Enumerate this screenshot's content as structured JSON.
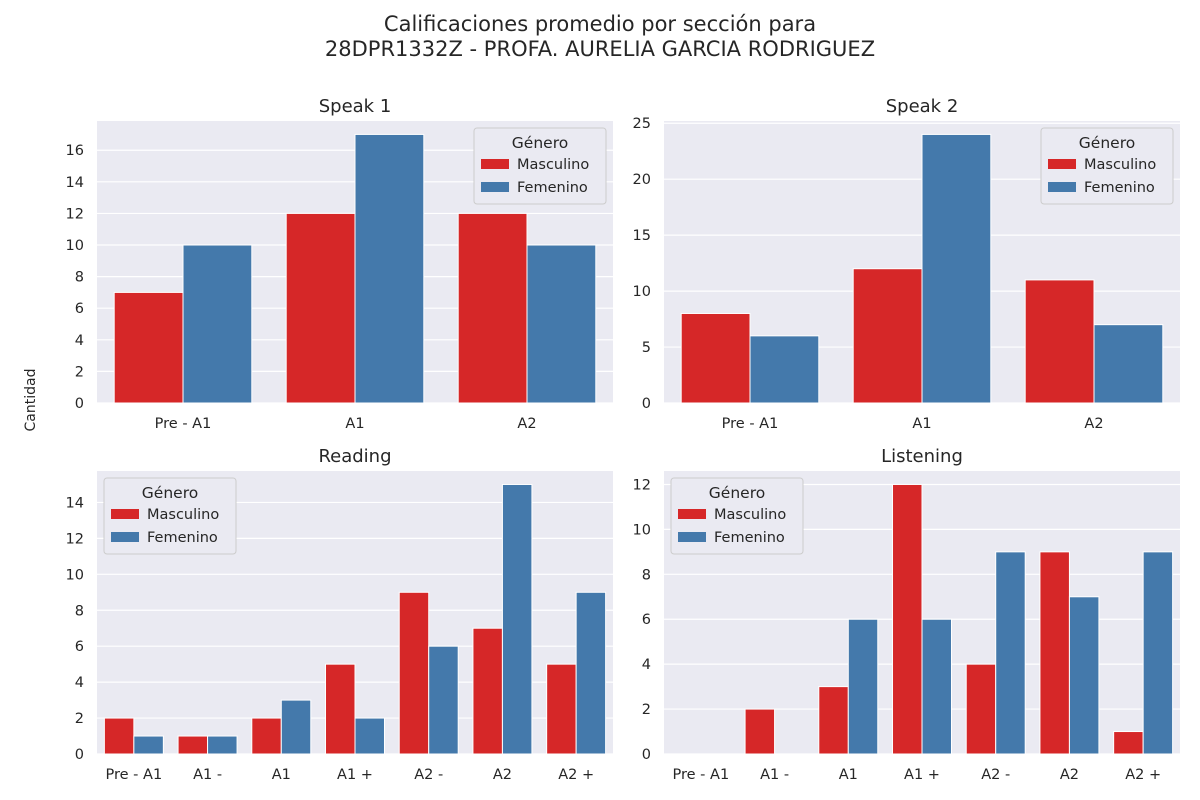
{
  "figure": {
    "title_line1": "Calificaciones promedio por sección para",
    "title_line2": "28DPR1332Z - PROFA. AURELIA GARCIA RODRIGUEZ",
    "ylabel": "Cantidad"
  },
  "colors": {
    "Masculino": "#d62728",
    "Femenino": "#4479ab",
    "background": "#eaeaf2",
    "grid": "#ffffff"
  },
  "chart_data": [
    {
      "type": "bar",
      "title": "Speak 1",
      "categories": [
        "Pre - A1",
        "A1",
        "A2"
      ],
      "series": [
        {
          "name": "Masculino",
          "values": [
            7,
            12,
            12
          ]
        },
        {
          "name": "Femenino",
          "values": [
            10,
            17,
            10
          ]
        }
      ],
      "ylim": [
        0,
        17.85
      ],
      "yticks": [
        0,
        2,
        4,
        6,
        8,
        10,
        12,
        14,
        16
      ],
      "grid": true,
      "legend_title": "Género",
      "legend_position": "top-right"
    },
    {
      "type": "bar",
      "title": "Speak 2",
      "categories": [
        "Pre - A1",
        "A1",
        "A2"
      ],
      "series": [
        {
          "name": "Masculino",
          "values": [
            8,
            12,
            11
          ]
        },
        {
          "name": "Femenino",
          "values": [
            6,
            24,
            7
          ]
        }
      ],
      "ylim": [
        0,
        25.2
      ],
      "yticks": [
        0,
        5,
        10,
        15,
        20,
        25
      ],
      "grid": true,
      "legend_title": "Género",
      "legend_position": "top-right"
    },
    {
      "type": "bar",
      "title": "Reading",
      "categories": [
        "Pre - A1",
        "A1 -",
        "A1",
        "A1 +",
        "A2 -",
        "A2",
        "A2 +"
      ],
      "series": [
        {
          "name": "Masculino",
          "values": [
            2,
            1,
            2,
            5,
            9,
            7,
            5
          ]
        },
        {
          "name": "Femenino",
          "values": [
            1,
            1,
            3,
            2,
            6,
            15,
            9
          ]
        }
      ],
      "ylim": [
        0,
        15.75
      ],
      "yticks": [
        0,
        2,
        4,
        6,
        8,
        10,
        12,
        14
      ],
      "grid": true,
      "legend_title": "Género",
      "legend_position": "top-left"
    },
    {
      "type": "bar",
      "title": "Listening",
      "categories": [
        "Pre - A1",
        "A1 -",
        "A1",
        "A1 +",
        "A2 -",
        "A2",
        "A2 +"
      ],
      "series": [
        {
          "name": "Masculino",
          "values": [
            0,
            2,
            3,
            12,
            4,
            9,
            1
          ]
        },
        {
          "name": "Femenino",
          "values": [
            0,
            0,
            6,
            6,
            9,
            7,
            9
          ]
        }
      ],
      "ylim": [
        0,
        12.6
      ],
      "yticks": [
        0,
        2,
        4,
        6,
        8,
        10,
        12
      ],
      "grid": true,
      "legend_title": "Género",
      "legend_position": "top-left"
    }
  ]
}
